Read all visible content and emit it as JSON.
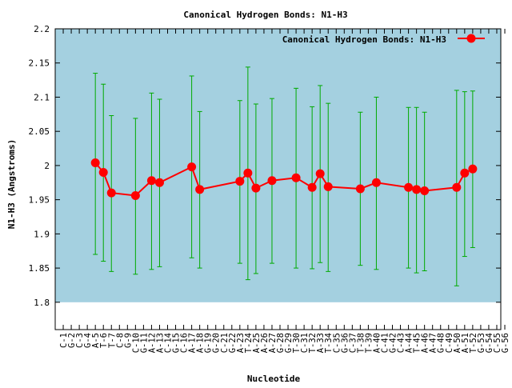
{
  "chart_data": {
    "type": "line",
    "title": "Canonical Hydrogen Bonds: N1-H3",
    "xlabel": "Nucleotide",
    "ylabel": "N1-H3 (Angstroms)",
    "ylim": [
      1.76,
      2.2
    ],
    "yticks": [
      "1.8",
      "1.85",
      "1.9",
      "1.95",
      "2",
      "2.05",
      "2.1",
      "2.15",
      "2.2"
    ],
    "shaded_band": [
      1.8,
      2.2
    ],
    "grid": false,
    "legend_position": "top-right",
    "colors": {
      "band": "#a4d0e0",
      "line": "#ff0000",
      "errorbar": "#00aa00"
    },
    "categories": [
      "C-1",
      "G-2",
      "C-3",
      "G-4",
      "A-5",
      "T-6",
      "T-7",
      "C-8",
      "G-9",
      "C-10",
      "G-11",
      "A-12",
      "A-13",
      "C-14",
      "G-15",
      "C-16",
      "A-17",
      "A-18",
      "G-19",
      "G-20",
      "C-21",
      "G-22",
      "A-23",
      "T-24",
      "A-25",
      "A-26",
      "A-27",
      "G-28",
      "G-29",
      "T-30",
      "C-31",
      "T-32",
      "A-33",
      "T-34",
      "C-35",
      "G-36",
      "C-37",
      "T-38",
      "T-39",
      "A-40",
      "C-41",
      "G-42",
      "C-43",
      "A-44",
      "T-45",
      "A-46",
      "A-47",
      "G-48",
      "C-49",
      "A-50",
      "A-51",
      "T-52",
      "G-53",
      "G-54",
      "C-55",
      "G-56"
    ],
    "series": [
      {
        "name": "Canonical Hydrogen Bonds: N1-H3",
        "points": [
          {
            "x": "A-5",
            "y": 2.004,
            "err_low": 1.87,
            "err_high": 2.135
          },
          {
            "x": "T-6",
            "y": 1.99,
            "err_low": 1.86,
            "err_high": 2.119
          },
          {
            "x": "T-7",
            "y": 1.96,
            "err_low": 1.845,
            "err_high": 2.073
          },
          {
            "x": "C-10",
            "y": 1.956,
            "err_low": 1.841,
            "err_high": 2.069
          },
          {
            "x": "A-12",
            "y": 1.978,
            "err_low": 1.848,
            "err_high": 2.106
          },
          {
            "x": "A-13",
            "y": 1.975,
            "err_low": 1.852,
            "err_high": 2.097
          },
          {
            "x": "A-17",
            "y": 1.998,
            "err_low": 1.865,
            "err_high": 2.131
          },
          {
            "x": "A-18",
            "y": 1.965,
            "err_low": 1.85,
            "err_high": 2.079
          },
          {
            "x": "A-23",
            "y": 1.977,
            "err_low": 1.857,
            "err_high": 2.095
          },
          {
            "x": "T-24",
            "y": 1.989,
            "err_low": 1.833,
            "err_high": 2.144
          },
          {
            "x": "A-25",
            "y": 1.967,
            "err_low": 1.842,
            "err_high": 2.09
          },
          {
            "x": "A-27",
            "y": 1.978,
            "err_low": 1.857,
            "err_high": 2.098
          },
          {
            "x": "T-30",
            "y": 1.982,
            "err_low": 1.85,
            "err_high": 2.113
          },
          {
            "x": "T-32",
            "y": 1.968,
            "err_low": 1.849,
            "err_high": 2.086
          },
          {
            "x": "A-33",
            "y": 1.988,
            "err_low": 1.858,
            "err_high": 2.117
          },
          {
            "x": "T-34",
            "y": 1.969,
            "err_low": 1.845,
            "err_high": 2.091
          },
          {
            "x": "T-38",
            "y": 1.966,
            "err_low": 1.854,
            "err_high": 2.078
          },
          {
            "x": "A-40",
            "y": 1.975,
            "err_low": 1.848,
            "err_high": 2.1
          },
          {
            "x": "A-44",
            "y": 1.968,
            "err_low": 1.85,
            "err_high": 2.085
          },
          {
            "x": "T-45",
            "y": 1.965,
            "err_low": 1.843,
            "err_high": 2.085
          },
          {
            "x": "A-46",
            "y": 1.963,
            "err_low": 1.846,
            "err_high": 2.078
          },
          {
            "x": "A-50",
            "y": 1.968,
            "err_low": 1.824,
            "err_high": 2.11
          },
          {
            "x": "A-51",
            "y": 1.989,
            "err_low": 1.867,
            "err_high": 2.108
          },
          {
            "x": "T-52",
            "y": 1.995,
            "err_low": 1.88,
            "err_high": 2.109
          }
        ]
      }
    ]
  }
}
